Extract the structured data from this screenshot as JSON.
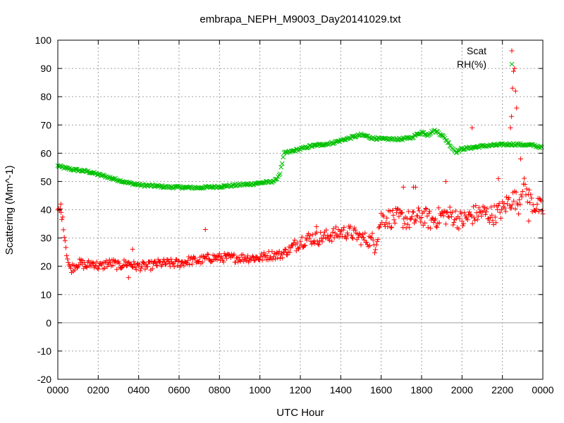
{
  "chart_data": {
    "type": "scatter",
    "title": "embrapa_NEPH_M9003_Day20141029.txt",
    "xlabel": "UTC Hour",
    "ylabel": "Scattering (Mm^-1)",
    "xlim": [
      0,
      24
    ],
    "ylim": [
      -20,
      100
    ],
    "grid": true,
    "legend_position": "top-right",
    "x_ticks": [
      0,
      2,
      4,
      6,
      8,
      10,
      12,
      14,
      16,
      18,
      20,
      22,
      24
    ],
    "x_tick_labels": [
      "0000",
      "0200",
      "0400",
      "0600",
      "0800",
      "1000",
      "1200",
      "1400",
      "1600",
      "1800",
      "2000",
      "2200",
      "0000"
    ],
    "y_ticks": [
      -20,
      -10,
      0,
      10,
      20,
      30,
      40,
      50,
      60,
      70,
      80,
      90,
      100
    ],
    "y_tick_labels": [
      "-20",
      "-10",
      "0",
      "10",
      "20",
      "30",
      "40",
      "50",
      "60",
      "70",
      "80",
      "90",
      "100"
    ],
    "series": [
      {
        "name": "Scat",
        "marker": "plus",
        "color": "#ff0000",
        "x": [
          0.0,
          0.1,
          0.2,
          0.3,
          0.4,
          0.5,
          0.6,
          0.8,
          1.0,
          1.2,
          1.4,
          1.6,
          1.8,
          2.0,
          2.2,
          2.4,
          2.6,
          2.8,
          3.0,
          3.3,
          3.6,
          3.8,
          4.0,
          4.5,
          5.0,
          5.5,
          6.0,
          6.5,
          7.0,
          7.5,
          8.0,
          8.5,
          9.0,
          9.5,
          10.0,
          10.5,
          11.0,
          11.5,
          12.0,
          12.5,
          13.0,
          13.5,
          14.0,
          14.5,
          15.0,
          15.5,
          15.7,
          16.0,
          16.5,
          17.0,
          17.5,
          18.0,
          18.5,
          19.0,
          19.5,
          20.0,
          20.5,
          21.0,
          21.5,
          22.0,
          22.3,
          22.6,
          22.8,
          23.0,
          23.5,
          24.0
        ],
        "y": [
          39,
          40,
          38,
          33,
          27,
          22,
          19,
          20,
          21,
          21,
          20,
          21,
          21,
          20,
          20,
          21,
          21,
          21,
          20,
          21,
          21,
          20,
          20,
          20,
          21,
          21,
          21,
          22,
          22,
          23,
          23,
          23,
          23,
          23,
          23,
          24,
          24,
          26,
          29,
          30,
          30,
          31,
          32,
          32,
          30,
          29,
          28,
          37,
          37,
          37,
          36,
          38,
          36,
          38,
          38,
          36,
          38,
          39,
          38,
          40,
          43,
          44,
          42,
          49,
          42,
          40
        ],
        "outliers_x": [
          0.15,
          3.5,
          3.7,
          7.3,
          12.8,
          17.1,
          17.6,
          17.7,
          19.2,
          20.5,
          21.8,
          22.4,
          22.45,
          22.5,
          22.55,
          22.6,
          22.65,
          22.7,
          23.3,
          22.9
        ],
        "outliers_y": [
          42,
          16,
          26,
          33,
          34,
          48,
          48,
          48,
          50,
          69,
          51,
          69,
          73,
          83,
          89,
          90,
          82,
          76,
          36,
          58
        ]
      },
      {
        "name": "RH(%)",
        "marker": "cross",
        "color": "#00c000",
        "x": [
          0.0,
          0.5,
          1.0,
          1.5,
          2.0,
          2.5,
          3.0,
          3.5,
          4.0,
          4.5,
          5.0,
          5.5,
          6.0,
          6.5,
          7.0,
          7.5,
          8.0,
          8.5,
          9.0,
          9.5,
          10.0,
          10.5,
          10.8,
          11.0,
          11.2,
          11.5,
          12.0,
          12.5,
          13.0,
          13.5,
          14.0,
          14.5,
          15.0,
          15.3,
          15.5,
          16.0,
          16.5,
          17.0,
          17.5,
          18.0,
          18.3,
          18.6,
          18.8,
          19.0,
          19.3,
          19.5,
          19.7,
          20.0,
          20.5,
          21.0,
          21.5,
          22.0,
          22.5,
          23.0,
          23.5,
          24.0
        ],
        "y": [
          55.5,
          54.5,
          54,
          53.5,
          52.5,
          51.5,
          50.5,
          49.5,
          48.8,
          48.5,
          48.3,
          48,
          48,
          47.8,
          47.8,
          48,
          48.2,
          48.5,
          48.8,
          49,
          49.5,
          49.8,
          50.5,
          53,
          60,
          60.5,
          61.5,
          62.5,
          63,
          63.5,
          64.5,
          65.5,
          66.5,
          66,
          65.5,
          65,
          65,
          65,
          65.5,
          67.5,
          66.5,
          68,
          67.5,
          66.5,
          64,
          62,
          60.5,
          61.5,
          62,
          62.5,
          62.8,
          63,
          63.2,
          63,
          62.8,
          62
        ]
      }
    ]
  }
}
